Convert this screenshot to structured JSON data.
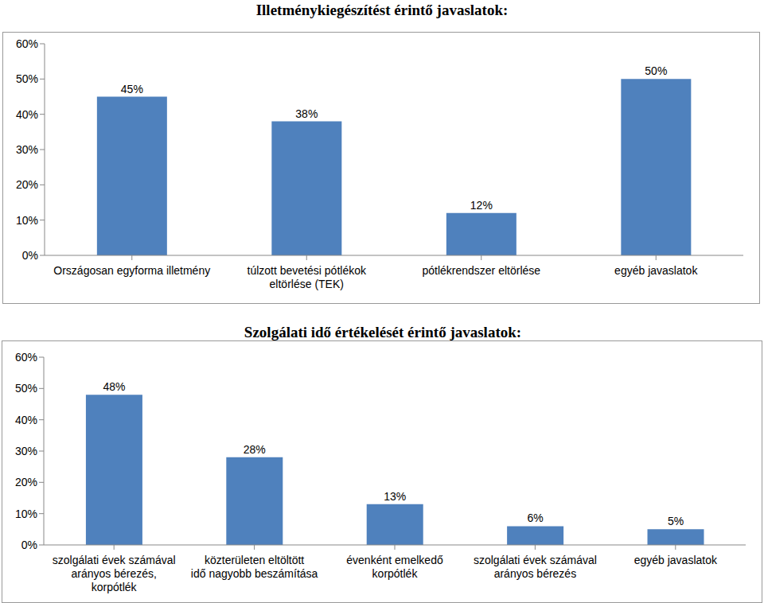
{
  "chart_data": [
    {
      "type": "bar",
      "title": "Illetménykiegészítést érintő javaslatok:",
      "categories": [
        "Országosan egyforma illetmény",
        "túlzott bevetési pótlékok eltörlése (TEK)",
        "pótlékrendszer eltörlése",
        "egyéb javaslatok"
      ],
      "values": [
        45,
        38,
        12,
        50
      ],
      "value_labels": [
        "45%",
        "38%",
        "12%",
        "50%"
      ],
      "color": "#4f81bd",
      "ylim": [
        0,
        60
      ],
      "yticks": [
        {
          "value": 0,
          "label": "0%"
        },
        {
          "value": 10,
          "label": "10%"
        },
        {
          "value": 20,
          "label": "20%"
        },
        {
          "value": 30,
          "label": "30%"
        },
        {
          "value": 40,
          "label": "40%"
        },
        {
          "value": 50,
          "label": "50%"
        },
        {
          "value": 60,
          "label": "60%"
        }
      ],
      "grid": false,
      "data_labels": true
    },
    {
      "type": "bar",
      "title": "Szolgálati idő értékelését érintő javaslatok:",
      "categories": [
        "szolgálati évek számával arányos bérezés, korpótlék",
        "közterületen eltöltött idő nagyobb beszámítása",
        "évenként emelkedő korpótlék",
        "szolgálati évek számával arányos bérezés",
        "egyéb javaslatok"
      ],
      "values": [
        48,
        28,
        13,
        6,
        5
      ],
      "value_labels": [
        "48%",
        "28%",
        "13%",
        "6%",
        "5%"
      ],
      "color": "#4f81bd",
      "ylim": [
        0,
        60
      ],
      "yticks": [
        {
          "value": 0,
          "label": "0%"
        },
        {
          "value": 10,
          "label": "10%"
        },
        {
          "value": 20,
          "label": "20%"
        },
        {
          "value": 30,
          "label": "30%"
        },
        {
          "value": 40,
          "label": "40%"
        },
        {
          "value": 50,
          "label": "50%"
        },
        {
          "value": 60,
          "label": "60%"
        }
      ],
      "grid": false,
      "data_labels": true
    }
  ]
}
